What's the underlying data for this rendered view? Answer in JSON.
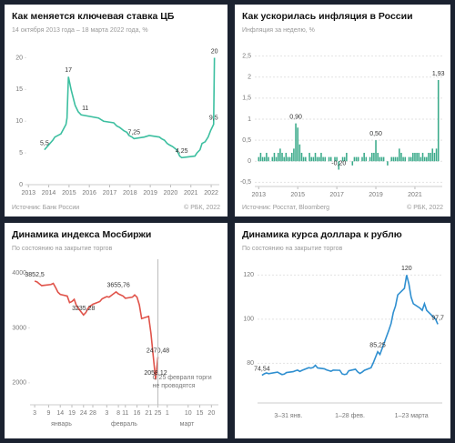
{
  "chart_data": [
    {
      "type": "line",
      "title": "Как меняется ключевая ставка ЦБ",
      "subtitle": "14 октября 2013 года – 18 марта 2022 года, %",
      "source": "Источник: Банк России",
      "copyright": "© РБК, 2022",
      "color": "#3cbfa0",
      "grid": false,
      "x": [
        2013.79,
        2014.2,
        2014.3,
        2014.6,
        2014.85,
        2014.9,
        2014.97,
        2015.1,
        2015.3,
        2015.45,
        2015.6,
        2016.45,
        2016.7,
        2017.2,
        2017.35,
        2017.5,
        2017.7,
        2017.85,
        2017.95,
        2018.1,
        2018.2,
        2018.7,
        2018.95,
        2019.45,
        2019.55,
        2019.7,
        2019.83,
        2019.95,
        2020.1,
        2020.3,
        2020.45,
        2020.55,
        2021.2,
        2021.3,
        2021.45,
        2021.55,
        2021.7,
        2021.85,
        2021.97,
        2022.12,
        2022.16
      ],
      "values": [
        5.5,
        7,
        7.5,
        8,
        9.5,
        10.5,
        17,
        15,
        12.5,
        11.5,
        11,
        10.5,
        10,
        9.75,
        9.25,
        9,
        8.5,
        8.25,
        7.75,
        7.5,
        7.25,
        7.5,
        7.75,
        7.5,
        7.25,
        7,
        6.5,
        6.25,
        6,
        5.5,
        4.5,
        4.25,
        4.5,
        5,
        5.5,
        6.5,
        6.75,
        7.5,
        8.5,
        9.5,
        20
      ],
      "xlim": [
        2012.9,
        2022.4
      ],
      "ylim": [
        0,
        21.5
      ],
      "xticks": [
        2013,
        2014,
        2015,
        2016,
        2017,
        2018,
        2019,
        2020,
        2021,
        2022
      ],
      "yticks": [
        0,
        5,
        10,
        15,
        20
      ],
      "annotations": [
        {
          "x": 2013.79,
          "y": 5.5,
          "label": "5,5"
        },
        {
          "x": 2014.97,
          "y": 17,
          "label": "17"
        },
        {
          "x": 2015.8,
          "y": 11,
          "label": "11"
        },
        {
          "x": 2018.2,
          "y": 7.25,
          "label": "7,25"
        },
        {
          "x": 2020.55,
          "y": 4.25,
          "label": "4,25"
        },
        {
          "x": 2022.12,
          "y": 9.5,
          "label": "9,5"
        },
        {
          "x": 2022.16,
          "y": 20,
          "label": "20"
        }
      ]
    },
    {
      "type": "bar",
      "title": "Как ускорилась инфляция в России",
      "subtitle": "Инфляция за неделю, %",
      "source": "Источник: Росстат, Bloomberg",
      "copyright": "© РБК, 2022",
      "color": "#3aaa8a",
      "grid": true,
      "x": [
        2013,
        2013.1,
        2013.2,
        2013.3,
        2013.4,
        2013.5,
        2013.6,
        2013.7,
        2013.8,
        2013.9,
        2014,
        2014.1,
        2014.2,
        2014.3,
        2014.4,
        2014.5,
        2014.6,
        2014.7,
        2014.8,
        2014.9,
        2015,
        2015.1,
        2015.2,
        2015.3,
        2015.4,
        2015.5,
        2015.6,
        2015.7,
        2015.8,
        2015.9,
        2016,
        2016.1,
        2016.2,
        2016.3,
        2016.4,
        2016.5,
        2016.6,
        2016.7,
        2016.8,
        2016.9,
        2017,
        2017.1,
        2017.2,
        2017.3,
        2017.4,
        2017.5,
        2017.6,
        2017.7,
        2017.8,
        2017.9,
        2018,
        2018.1,
        2018.2,
        2018.3,
        2018.4,
        2018.5,
        2018.6,
        2018.7,
        2018.8,
        2018.9,
        2019,
        2019.1,
        2019.2,
        2019.3,
        2019.4,
        2019.5,
        2019.6,
        2019.7,
        2019.8,
        2019.9,
        2020,
        2020.1,
        2020.2,
        2020.3,
        2020.4,
        2020.5,
        2020.6,
        2020.7,
        2020.8,
        2020.9,
        2021,
        2021.1,
        2021.2,
        2021.3,
        2021.4,
        2021.5,
        2021.6,
        2021.7,
        2021.8,
        2021.9,
        2022,
        2022.1,
        2022.2
      ],
      "values": [
        0.1,
        0.2,
        0.1,
        0.1,
        0.2,
        0.1,
        0,
        0.1,
        0.2,
        0.1,
        0.2,
        0.3,
        0.2,
        0.1,
        0.2,
        0.1,
        0.1,
        0.2,
        0.3,
        0.9,
        0.8,
        0.4,
        0.2,
        0.1,
        0.1,
        0,
        0.2,
        0.1,
        0.1,
        0.2,
        0.1,
        0.1,
        0.2,
        0.1,
        0.1,
        0,
        0.1,
        0.1,
        0,
        0.1,
        0.1,
        -0.2,
        0,
        0.1,
        0.1,
        0.2,
        0,
        0,
        -0.1,
        0.1,
        0.1,
        0.1,
        0,
        0.1,
        0.2,
        0.1,
        0,
        0.1,
        0.2,
        0.2,
        0.5,
        0.2,
        0.1,
        0.1,
        0.1,
        0,
        -0.1,
        0,
        0.1,
        0.1,
        0.1,
        0.1,
        0.3,
        0.2,
        0.1,
        0.1,
        0,
        0.1,
        0.1,
        0.2,
        0.2,
        0.2,
        0.2,
        0.1,
        0.2,
        0.1,
        0.1,
        0.2,
        0.2,
        0.3,
        0.2,
        0.3,
        1.93
      ],
      "xlim": [
        2012.8,
        2022.4
      ],
      "ylim": [
        -0.6,
        2.6
      ],
      "xticks": [
        2013,
        2015,
        2017,
        2019,
        2021
      ],
      "yticks": [
        {
          "value": -0.5,
          "label": "-0,5"
        },
        0,
        {
          "value": 0.5,
          "label": "0,5"
        },
        1,
        {
          "value": 1.5,
          "label": "1,5"
        },
        2,
        {
          "value": 2.5,
          "label": "2,5"
        }
      ],
      "annotations": [
        {
          "x": 2014.9,
          "y": 0.9,
          "label": "0,90"
        },
        {
          "x": 2017.1,
          "y": -0.2,
          "label": "-0,20"
        },
        {
          "x": 2019,
          "y": 0.5,
          "label": "0,50"
        },
        {
          "x": 2022.2,
          "y": 1.93,
          "label": "1,93"
        }
      ]
    },
    {
      "type": "line",
      "title": "Динамика индекса Мосбиржи",
      "subtitle": "По состоянию на закрытие торгов",
      "color": "#e0534a",
      "grid": false,
      "x": [
        3,
        4,
        5,
        6,
        10,
        11,
        12,
        13,
        14,
        17,
        18,
        19,
        20,
        21,
        24,
        25,
        26,
        27,
        28,
        31,
        32,
        33,
        34,
        35,
        38,
        39,
        40,
        41,
        42,
        45,
        46,
        47,
        48,
        49,
        52,
        53,
        55,
        56
      ],
      "values": [
        3852.5,
        3838,
        3803,
        3770,
        3790,
        3810,
        3735,
        3650,
        3610,
        3580,
        3460,
        3480,
        3520,
        3400,
        3235.28,
        3280,
        3360,
        3400,
        3430,
        3480,
        3530,
        3550,
        3570,
        3560,
        3655.76,
        3620,
        3600,
        3580,
        3540,
        3560,
        3600,
        3560,
        3420,
        3170,
        3210,
        2900,
        2058.12,
        2470.48
      ],
      "xlim": [
        1,
        82
      ],
      "ylim": [
        1600,
        4250
      ],
      "yticks": [
        2000,
        3000,
        4000
      ],
      "xticks": [
        3,
        9,
        14,
        19,
        24,
        28,
        {
          "value": 34,
          "label": "3"
        },
        {
          "value": 39,
          "label": "8"
        },
        {
          "value": 42,
          "label": "11"
        },
        {
          "value": 47,
          "label": "16"
        },
        {
          "value": 52,
          "label": "21"
        },
        {
          "value": 56,
          "label": "25"
        },
        {
          "value": 60,
          "label": "1"
        },
        {
          "value": 69,
          "label": "10"
        },
        {
          "value": 74,
          "label": "15"
        },
        {
          "value": 79,
          "label": "20"
        }
      ],
      "month_labels": [
        "январь",
        "февраль",
        "март"
      ],
      "note_lines": [
        "С 25 февраля торги",
        "не проводятся"
      ],
      "annotations": [
        {
          "x": 3,
          "y": 3852.5,
          "label": "3852,5"
        },
        {
          "x": 24,
          "y": 3235.28,
          "label": "3235,28"
        },
        {
          "x": 39,
          "y": 3655.76,
          "label": "3655,76"
        },
        {
          "x": 56,
          "y": 2470.48,
          "label": "2470,48"
        },
        {
          "x": 55,
          "y": 2058.12,
          "label": "2058,12"
        }
      ]
    },
    {
      "type": "line",
      "title": "Динамика курса доллара к рублю",
      "subtitle": "По состоянию на закрытие торгов",
      "color": "#2f8fd0",
      "grid": true,
      "x": [
        3,
        4,
        5,
        6,
        10,
        11,
        12,
        13,
        14,
        17,
        18,
        19,
        20,
        21,
        24,
        25,
        26,
        27,
        28,
        31,
        32,
        33,
        34,
        35,
        38,
        39,
        40,
        41,
        42,
        45,
        46,
        47,
        48,
        49,
        52,
        53,
        55,
        56,
        60,
        61,
        62,
        63,
        64,
        67,
        68,
        69,
        70,
        71,
        74,
        75,
        76,
        77,
        78,
        81,
        82
      ],
      "values": [
        74.54,
        75.2,
        75.6,
        75.3,
        76,
        75.4,
        74.9,
        75.1,
        75.8,
        76.2,
        76.6,
        76.9,
        76.3,
        76.8,
        78,
        77.8,
        78.1,
        79.1,
        77.9,
        77.5,
        77,
        76.7,
        76.4,
        76.9,
        76.8,
        75.2,
        74.9,
        75.1,
        76.6,
        77.3,
        76.1,
        75.4,
        76,
        76.8,
        78,
        80.2,
        85.25,
        84,
        95,
        98,
        103,
        106,
        111,
        114,
        120,
        116,
        110,
        107,
        105,
        104,
        107,
        104,
        103,
        100,
        97.7
      ],
      "xlim": [
        1,
        84
      ],
      "ylim": [
        62,
        128
      ],
      "yticks": [
        80,
        100,
        120
      ],
      "period_labels": [
        "3–31 янв.",
        "1–28 фев.",
        "1–23 марта"
      ],
      "annotations": [
        {
          "x": 3,
          "y": 74.54,
          "label": "74,54"
        },
        {
          "x": 55,
          "y": 85.25,
          "label": "85,25"
        },
        {
          "x": 68,
          "y": 120,
          "label": "120"
        },
        {
          "x": 82,
          "y": 97.7,
          "label": "97,7"
        }
      ]
    }
  ]
}
